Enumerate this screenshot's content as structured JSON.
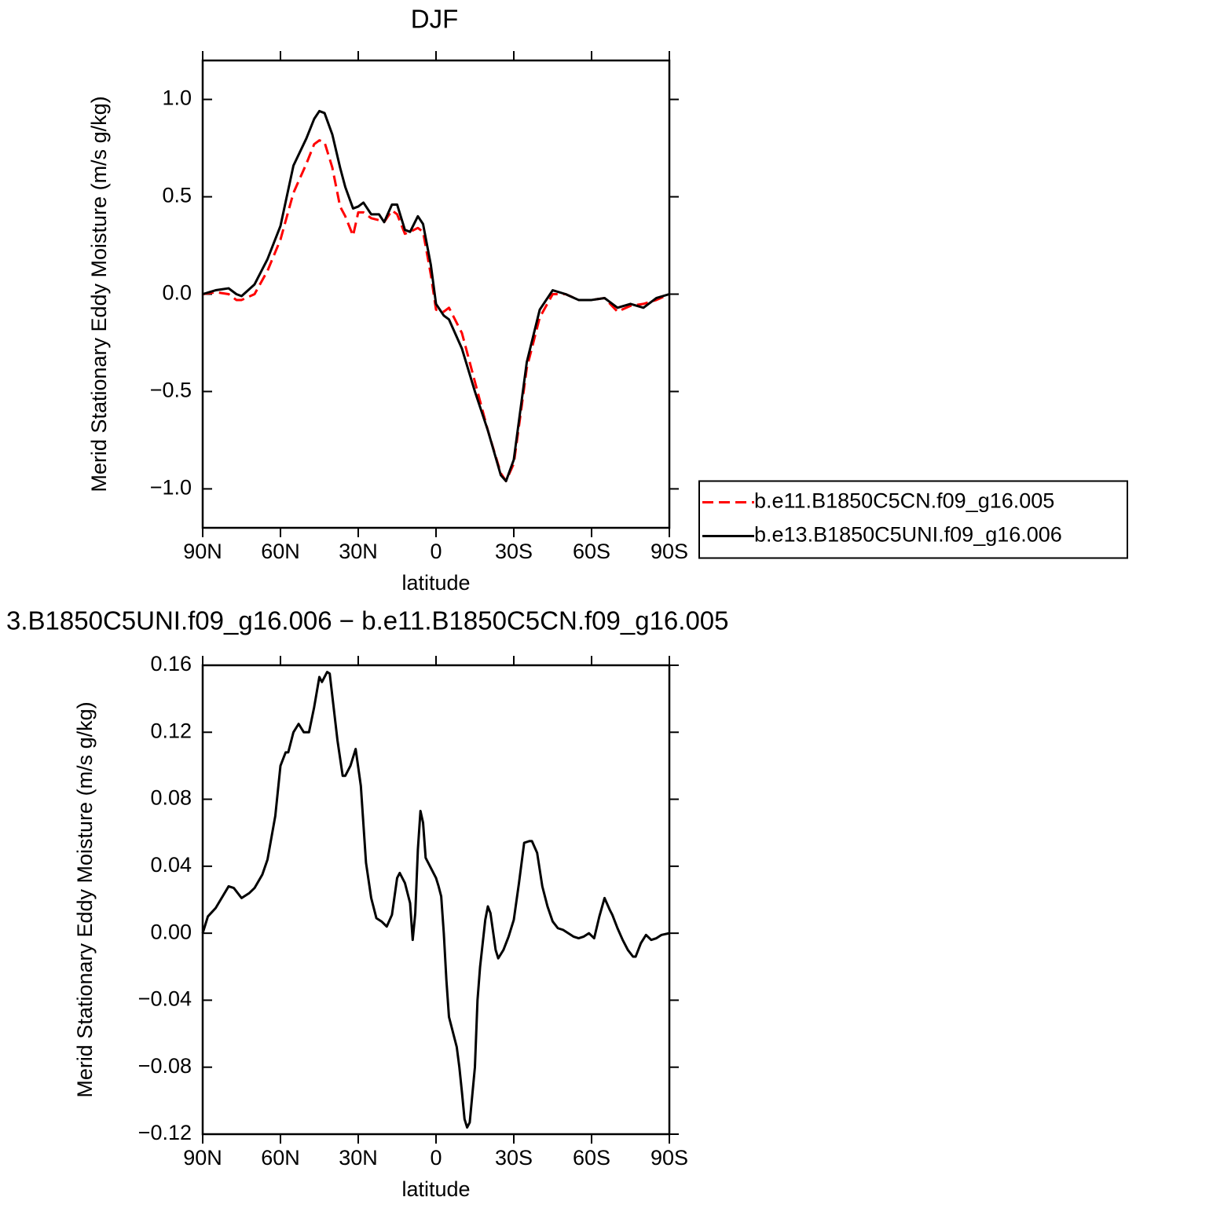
{
  "chart_data": [
    {
      "type": "line",
      "title": "DJF",
      "xlabel": "latitude",
      "ylabel": "Merid Stationary Eddy Moisture (m/s g/kg)",
      "x": [
        90,
        85,
        80,
        77,
        75,
        70,
        65,
        60,
        55,
        50,
        47,
        45,
        43,
        40,
        37,
        35,
        32,
        30,
        28,
        25,
        22,
        20,
        17,
        15,
        12,
        10,
        7,
        5,
        2,
        0,
        -3,
        -5,
        -10,
        -15,
        -20,
        -25,
        -27,
        -30,
        -33,
        -35,
        -40,
        -45,
        -50,
        -55,
        -60,
        -65,
        -70,
        -75,
        -80,
        -85,
        -90
      ],
      "series": [
        {
          "name": "b.e11.B1850C5CN.f09_g16.005",
          "color": "#ff0000",
          "line_style": "dashed",
          "values": [
            0,
            0.01,
            0,
            -0.03,
            -0.03,
            0,
            0.12,
            0.28,
            0.52,
            0.67,
            0.77,
            0.79,
            0.78,
            0.65,
            0.45,
            0.4,
            0.3,
            0.42,
            0.42,
            0.39,
            0.38,
            0.37,
            0.43,
            0.41,
            0.31,
            0.32,
            0.34,
            0.32,
            0.1,
            -0.08,
            -0.09,
            -0.07,
            -0.2,
            -0.45,
            -0.7,
            -0.92,
            -0.96,
            -0.87,
            -0.58,
            -0.38,
            -0.12,
            0,
            0,
            -0.03,
            -0.03,
            -0.02,
            -0.09,
            -0.06,
            -0.05,
            -0.03,
            0
          ]
        },
        {
          "name": "b.e13.B1850C5UNI.f09_g16.006",
          "color": "#000000",
          "line_style": "solid",
          "values": [
            0,
            0.02,
            0.03,
            0,
            -0.01,
            0.05,
            0.18,
            0.35,
            0.66,
            0.8,
            0.9,
            0.94,
            0.93,
            0.82,
            0.65,
            0.55,
            0.44,
            0.45,
            0.47,
            0.41,
            0.41,
            0.37,
            0.46,
            0.46,
            0.33,
            0.32,
            0.4,
            0.36,
            0.15,
            -0.05,
            -0.11,
            -0.13,
            -0.28,
            -0.5,
            -0.7,
            -0.93,
            -0.96,
            -0.85,
            -0.55,
            -0.35,
            -0.08,
            0.02,
            0,
            -0.03,
            -0.03,
            -0.02,
            -0.07,
            -0.05,
            -0.07,
            -0.02,
            0
          ]
        }
      ],
      "xlim": [
        90,
        -90
      ],
      "xticks": [
        {
          "value": 90,
          "label": "90N"
        },
        {
          "value": 60,
          "label": "60N"
        },
        {
          "value": 30,
          "label": "30N"
        },
        0,
        {
          "value": -30,
          "label": "30S"
        },
        {
          "value": -60,
          "label": "60S"
        },
        {
          "value": -90,
          "label": "90S"
        }
      ],
      "ylim": [
        -1.2,
        1.2
      ],
      "yticks": [
        {
          "value": -1,
          "label": "−1.0"
        },
        {
          "value": -0.5,
          "label": "−0.5"
        },
        {
          "value": 0,
          "label": "0.0"
        },
        {
          "value": 0.5,
          "label": "0.5"
        },
        {
          "value": 1,
          "label": "1.0"
        }
      ],
      "legend": "right"
    },
    {
      "type": "line",
      "title": "3.B1850C5UNI.f09_g16.006 − b.e11.B1850C5CN.f09_g16.005",
      "xlabel": "latitude",
      "ylabel": "Merid Stationary Eddy Moisture (m/s g/kg)",
      "x": [
        90,
        88,
        85,
        80,
        78,
        75,
        72,
        70,
        67,
        65,
        62,
        60,
        58,
        57,
        55,
        53,
        51,
        49,
        47,
        45,
        44,
        42,
        41,
        38,
        36,
        35,
        33,
        31,
        29,
        27,
        25,
        23,
        21,
        19,
        17,
        15,
        14,
        12,
        10,
        9,
        8,
        7,
        6,
        5,
        4,
        0,
        -1,
        -2,
        -3,
        -4,
        -5,
        -8,
        -9,
        -10,
        -11,
        -12,
        -13,
        -15,
        -16,
        -17,
        -19,
        -20,
        -21,
        -23,
        -24,
        -26,
        -28,
        -30,
        -32,
        -34,
        -36,
        -37,
        -39,
        -41,
        -43,
        -45,
        -47,
        -49,
        -51,
        -53,
        -55,
        -57,
        -59,
        -61,
        -63,
        -65,
        -67,
        -68,
        -70,
        -72,
        -74,
        -76,
        -77,
        -79,
        -81,
        -83,
        -85,
        -87,
        -90
      ],
      "series": [
        {
          "color": "#000000",
          "line_style": "solid",
          "values": [
            0,
            0.01,
            0.015,
            0.028,
            0.027,
            0.021,
            0.024,
            0.027,
            0.035,
            0.044,
            0.07,
            0.1,
            0.108,
            0.108,
            0.12,
            0.125,
            0.12,
            0.12,
            0.135,
            0.153,
            0.15,
            0.156,
            0.155,
            0.115,
            0.094,
            0.094,
            0.1,
            0.11,
            0.088,
            0.042,
            0.021,
            0.009,
            0.007,
            0.004,
            0.011,
            0.033,
            0.036,
            0.03,
            0.018,
            -0.004,
            0.012,
            0.05,
            0.073,
            0.066,
            0.045,
            0.033,
            0.028,
            0.022,
            0,
            -0.028,
            -0.05,
            -0.068,
            -0.08,
            -0.095,
            -0.111,
            -0.116,
            -0.113,
            -0.08,
            -0.04,
            -0.02,
            0.008,
            0.016,
            0.012,
            -0.01,
            -0.015,
            -0.01,
            -0.002,
            0.008,
            0.03,
            0.054,
            0.055,
            0.055,
            0.048,
            0.028,
            0.016,
            0.007,
            0.003,
            0.002,
            0,
            -0.002,
            -0.003,
            -0.002,
            0,
            -0.003,
            0.01,
            0.021,
            0.014,
            0.011,
            0.003,
            -0.004,
            -0.01,
            -0.014,
            -0.014,
            -0.006,
            -0.001,
            -0.004,
            -0.003,
            -0.001,
            0
          ]
        }
      ],
      "xlim": [
        90,
        -90
      ],
      "xticks": [
        {
          "value": 90,
          "label": "90N"
        },
        {
          "value": 60,
          "label": "60N"
        },
        {
          "value": 30,
          "label": "30N"
        },
        0,
        {
          "value": -30,
          "label": "30S"
        },
        {
          "value": -60,
          "label": "60S"
        },
        {
          "value": -90,
          "label": "90S"
        }
      ],
      "ylim": [
        -0.12,
        0.16
      ],
      "yticks": [
        {
          "value": -0.12,
          "label": "−0.12"
        },
        {
          "value": -0.08,
          "label": "−0.08"
        },
        {
          "value": -0.04,
          "label": "−0.04"
        },
        {
          "value": 0,
          "label": "0.00"
        },
        0.04,
        0.08,
        0.12,
        0.16
      ]
    }
  ]
}
